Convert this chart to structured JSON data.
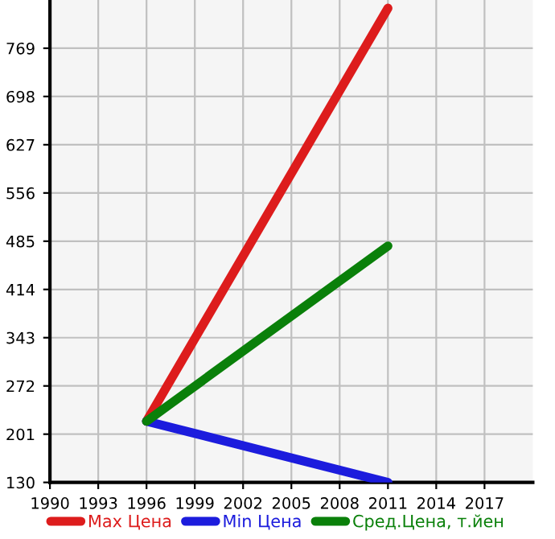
{
  "chart_data": {
    "type": "line",
    "x": [
      1996,
      2011
    ],
    "series": [
      {
        "name": "Max Цена",
        "color": "#dd1c1c",
        "values": [
          220,
          828
        ]
      },
      {
        "name": "Min Цена",
        "color": "#1c1cdd",
        "values": [
          220,
          130
        ]
      },
      {
        "name": "Сред.Цена, т.йен",
        "color": "#0a800a",
        "values": [
          220,
          478
        ]
      }
    ],
    "xlim": [
      1990,
      2020
    ],
    "xticks": [
      1990,
      1993,
      1996,
      1999,
      2002,
      2005,
      2008,
      2011,
      2014,
      2017
    ],
    "ylim": [
      130,
      840
    ],
    "yticks": [
      130,
      201,
      272,
      343,
      414,
      485,
      556,
      627,
      698,
      769
    ],
    "grid": true,
    "legend": "bottom",
    "marker": "none",
    "line_style": "solid"
  }
}
